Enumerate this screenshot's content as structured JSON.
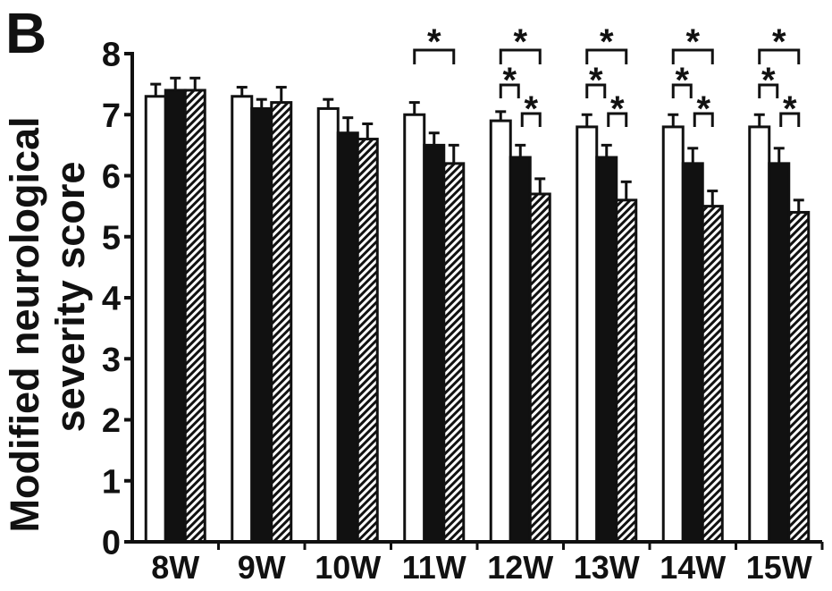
{
  "panel_label": "B",
  "chart_data": {
    "type": "bar",
    "ylabel": [
      "Modified neurological",
      "severity score"
    ],
    "categories": [
      "8W",
      "9W",
      "10W",
      "11W",
      "12W",
      "13W",
      "14W",
      "15W"
    ],
    "ylim": [
      0,
      8
    ],
    "yticks": [
      0,
      1,
      2,
      3,
      4,
      5,
      6,
      7,
      8
    ],
    "grid": false,
    "legend": "none",
    "outline_color": "#111111",
    "series": [
      {
        "fill": "#ffffff",
        "values": [
          7.3,
          7.3,
          7.1,
          7.0,
          6.9,
          6.8,
          6.8,
          6.8
        ],
        "errors": [
          0.2,
          0.15,
          0.15,
          0.2,
          0.15,
          0.2,
          0.2,
          0.2
        ]
      },
      {
        "fill": "#111111",
        "values": [
          7.4,
          7.1,
          6.7,
          6.5,
          6.3,
          6.3,
          6.2,
          6.2
        ],
        "errors": [
          0.2,
          0.15,
          0.25,
          0.2,
          0.2,
          0.2,
          0.25,
          0.25
        ]
      },
      {
        "fill": "#ffffff",
        "pattern": "diagonal-hatch",
        "pattern_color": "#111111",
        "values": [
          7.4,
          7.2,
          6.6,
          6.2,
          5.7,
          5.6,
          5.5,
          5.4
        ],
        "errors": [
          0.2,
          0.25,
          0.25,
          0.3,
          0.25,
          0.3,
          0.25,
          0.2
        ]
      }
    ],
    "significance": {
      "label": "*",
      "comparisons": [
        {
          "category": "11W",
          "pairs": [
            [
              0,
              2
            ]
          ]
        },
        {
          "category": "12W",
          "pairs": [
            [
              0,
              2
            ],
            [
              0,
              1
            ],
            [
              1,
              2
            ]
          ]
        },
        {
          "category": "13W",
          "pairs": [
            [
              0,
              2
            ],
            [
              0,
              1
            ],
            [
              1,
              2
            ]
          ]
        },
        {
          "category": "14W",
          "pairs": [
            [
              0,
              2
            ],
            [
              0,
              1
            ],
            [
              1,
              2
            ]
          ]
        },
        {
          "category": "15W",
          "pairs": [
            [
              0,
              2
            ],
            [
              0,
              1
            ],
            [
              1,
              2
            ]
          ]
        }
      ]
    }
  }
}
